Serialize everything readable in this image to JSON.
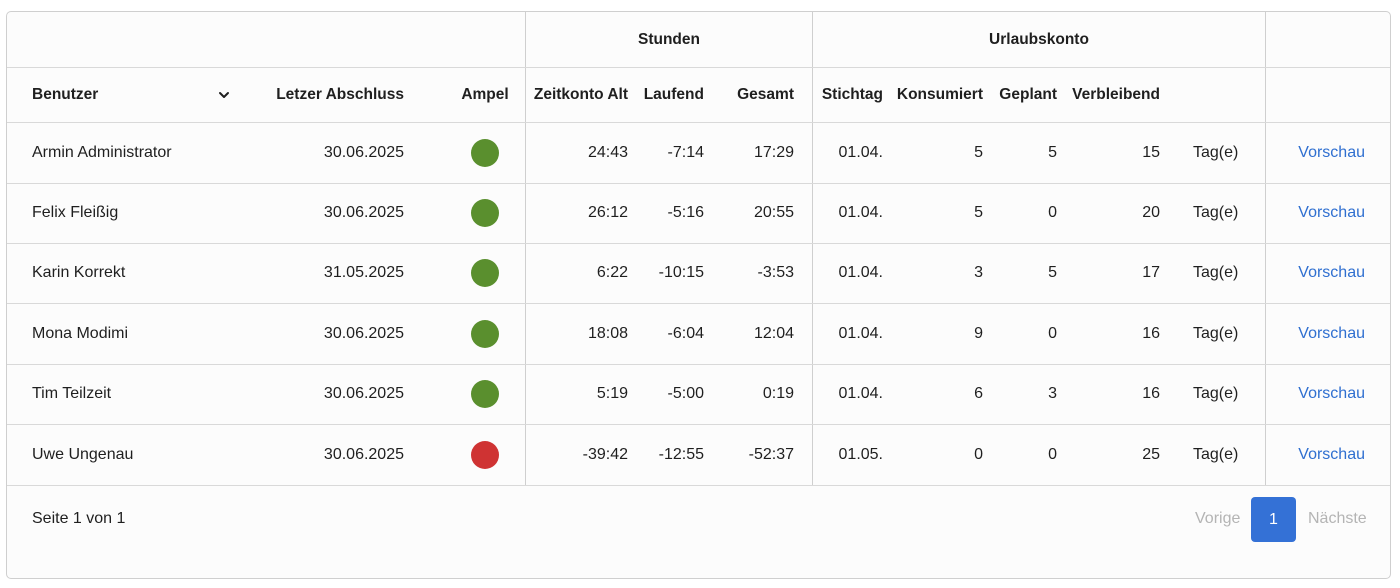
{
  "header": {
    "groups": {
      "stunden": "Stunden",
      "urlaubskonto": "Urlaubskonto"
    },
    "columns": {
      "benutzer": "Benutzer",
      "letzter_abschluss": "Letzer Abschluss",
      "ampel": "Ampel",
      "zeitkonto_alt": "Zeitkonto Alt",
      "laufend": "Laufend",
      "gesamt": "Gesamt",
      "stichtag": "Stichtag",
      "konsumiert": "Konsumiert",
      "geplant": "Geplant",
      "verbleibend": "Verbleibend"
    }
  },
  "colors": {
    "green": "#5a8f2e",
    "red": "#cf3333",
    "link": "#2f6fd0",
    "accent": "#3471d6"
  },
  "rows": [
    {
      "name": "Armin Administrator",
      "abschluss": "30.06.2025",
      "ampel": "green",
      "zeitkonto_alt": "24:43",
      "laufend": "-7:14",
      "gesamt": "17:29",
      "stichtag": "01.04.",
      "konsumiert": "5",
      "geplant": "5",
      "verbleibend": "15",
      "unit": "Tag(e)",
      "action": "Vorschau"
    },
    {
      "name": "Felix Fleißig",
      "abschluss": "30.06.2025",
      "ampel": "green",
      "zeitkonto_alt": "26:12",
      "laufend": "-5:16",
      "gesamt": "20:55",
      "stichtag": "01.04.",
      "konsumiert": "5",
      "geplant": "0",
      "verbleibend": "20",
      "unit": "Tag(e)",
      "action": "Vorschau"
    },
    {
      "name": "Karin Korrekt",
      "abschluss": "31.05.2025",
      "ampel": "green",
      "zeitkonto_alt": "6:22",
      "laufend": "-10:15",
      "gesamt": "-3:53",
      "stichtag": "01.04.",
      "konsumiert": "3",
      "geplant": "5",
      "verbleibend": "17",
      "unit": "Tag(e)",
      "action": "Vorschau"
    },
    {
      "name": "Mona Modimi",
      "abschluss": "30.06.2025",
      "ampel": "green",
      "zeitkonto_alt": "18:08",
      "laufend": "-6:04",
      "gesamt": "12:04",
      "stichtag": "01.04.",
      "konsumiert": "9",
      "geplant": "0",
      "verbleibend": "16",
      "unit": "Tag(e)",
      "action": "Vorschau"
    },
    {
      "name": "Tim Teilzeit",
      "abschluss": "30.06.2025",
      "ampel": "green",
      "zeitkonto_alt": "5:19",
      "laufend": "-5:00",
      "gesamt": "0:19",
      "stichtag": "01.04.",
      "konsumiert": "6",
      "geplant": "3",
      "verbleibend": "16",
      "unit": "Tag(e)",
      "action": "Vorschau"
    },
    {
      "name": "Uwe Ungenau",
      "abschluss": "30.06.2025",
      "ampel": "red",
      "zeitkonto_alt": "-39:42",
      "laufend": "-12:55",
      "gesamt": "-52:37",
      "stichtag": "01.05.",
      "konsumiert": "0",
      "geplant": "0",
      "verbleibend": "25",
      "unit": "Tag(e)",
      "action": "Vorschau"
    }
  ],
  "footer": {
    "page_info": "Seite 1 von 1",
    "prev_label": "Vorige",
    "current_page": "1",
    "next_label": "Nächste"
  }
}
